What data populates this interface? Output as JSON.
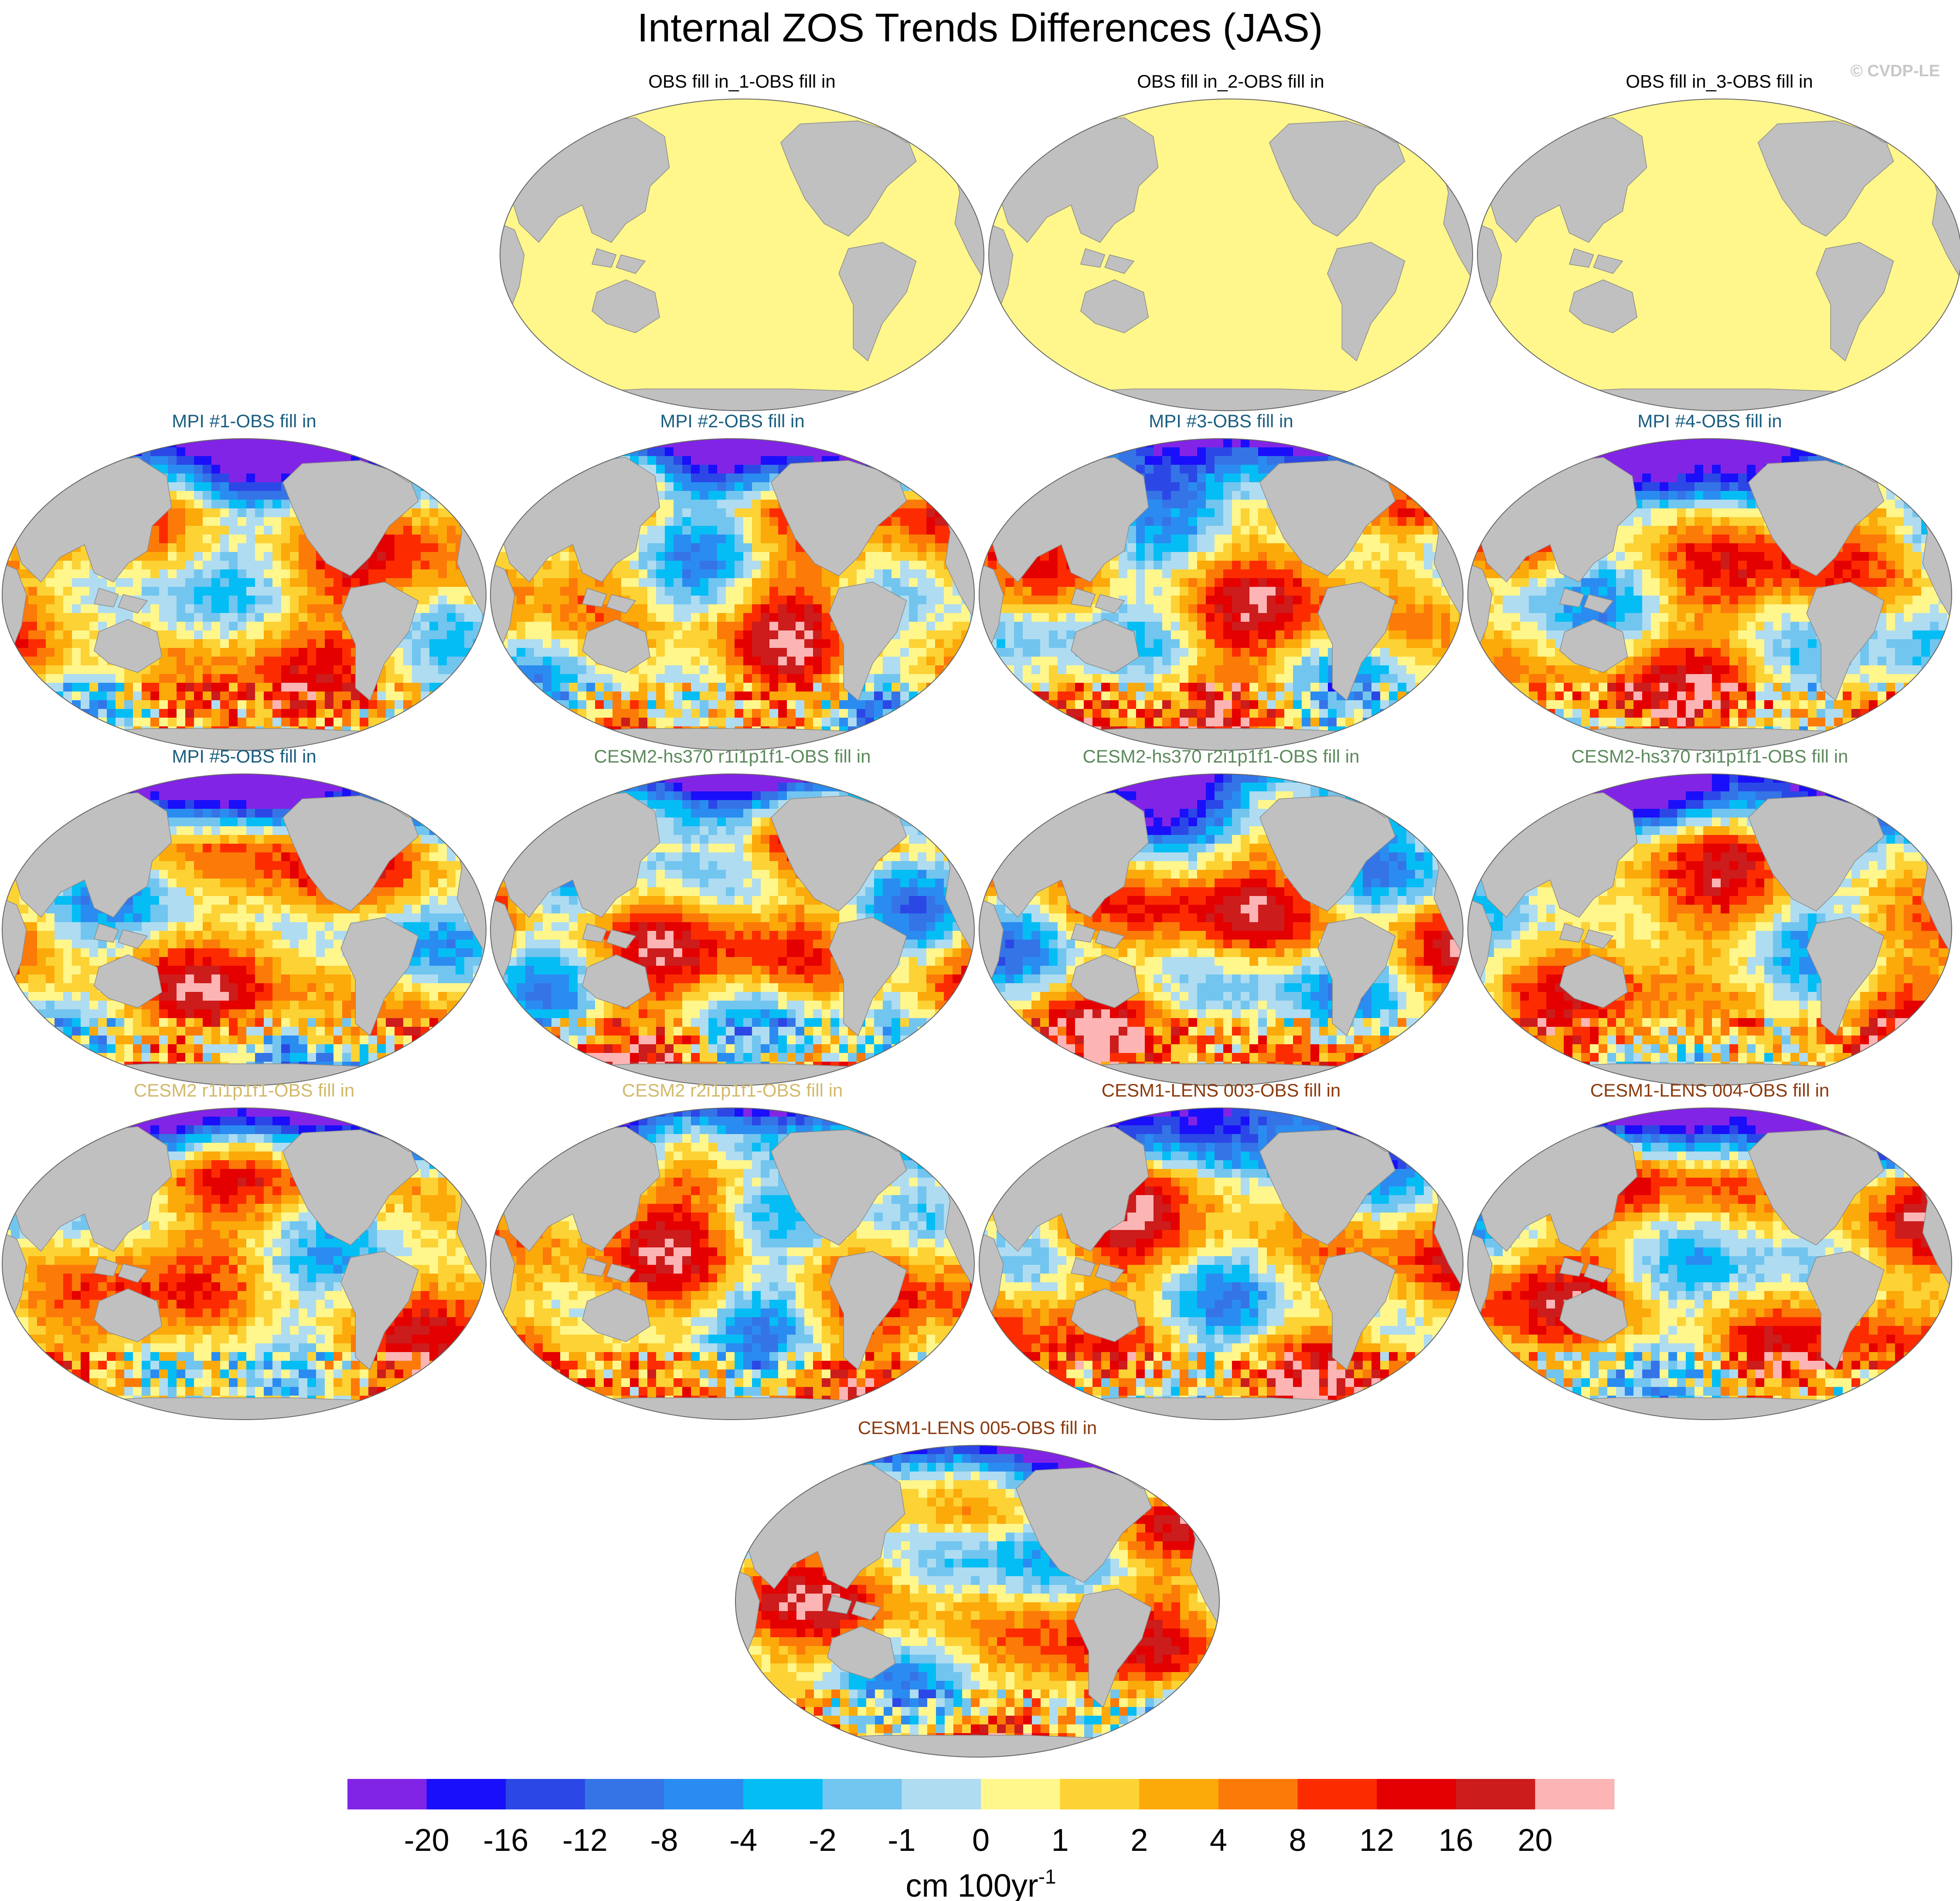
{
  "figure": {
    "title": "Internal ZOS Trends Differences (JAS)",
    "watermark": "© CVDP-LE"
  },
  "chart_data": {
    "type": "heatmap",
    "title": "Internal ZOS Trends Differences (JAS)",
    "projection": "robinson-like global map, Pacific-centered",
    "land_color": "#c0c0c0",
    "panels": [
      {
        "title": "OBS fill in_1-OBS fill in",
        "title_color": "#000000",
        "pattern": "uniform"
      },
      {
        "title": "OBS fill in_2-OBS fill in",
        "title_color": "#000000",
        "pattern": "uniform"
      },
      {
        "title": "OBS fill in_3-OBS fill in",
        "title_color": "#000000",
        "pattern": "uniform"
      },
      {
        "title": "MPI #1-OBS fill in",
        "title_color": "#1a5e80",
        "pattern": "field"
      },
      {
        "title": "MPI #2-OBS fill in",
        "title_color": "#1a5e80",
        "pattern": "field"
      },
      {
        "title": "MPI #3-OBS fill in",
        "title_color": "#1a5e80",
        "pattern": "field"
      },
      {
        "title": "MPI #4-OBS fill in",
        "title_color": "#1a5e80",
        "pattern": "field"
      },
      {
        "title": "MPI #5-OBS fill in",
        "title_color": "#1a5e80",
        "pattern": "field"
      },
      {
        "title": "CESM2-hs370 r1i1p1f1-OBS fill in",
        "title_color": "#5d8a5d",
        "pattern": "field"
      },
      {
        "title": "CESM2-hs370 r2i1p1f1-OBS fill in",
        "title_color": "#5d8a5d",
        "pattern": "field"
      },
      {
        "title": "CESM2-hs370 r3i1p1f1-OBS fill in",
        "title_color": "#5d8a5d",
        "pattern": "field"
      },
      {
        "title": "CESM2 r1i1p1f1-OBS fill in",
        "title_color": "#d2b96a",
        "pattern": "field"
      },
      {
        "title": "CESM2 r2i1p1f1-OBS fill in",
        "title_color": "#d2b96a",
        "pattern": "field"
      },
      {
        "title": "CESM1-LENS 003-OBS fill in",
        "title_color": "#8b3a0e",
        "pattern": "field"
      },
      {
        "title": "CESM1-LENS 004-OBS fill in",
        "title_color": "#8b3a0e",
        "pattern": "field"
      },
      {
        "title": "CESM1-LENS 005-OBS fill in",
        "title_color": "#8b3a0e",
        "pattern": "field"
      }
    ],
    "colorbar": {
      "label": "cm 100yr",
      "label_superscript": "-1",
      "ticks": [
        "-20",
        "-16",
        "-12",
        "-8",
        "-4",
        "-2",
        "-1",
        "0",
        "1",
        "2",
        "4",
        "8",
        "12",
        "16",
        "20"
      ],
      "colors": [
        "#8224e6",
        "#1a0ffa",
        "#2b48e6",
        "#3574e6",
        "#2a8cf0",
        "#05bdf5",
        "#72c5ef",
        "#afdcf0",
        "#fff68c",
        "#fcd235",
        "#fca90a",
        "#fc7a08",
        "#fc2c00",
        "#e40000",
        "#cc1c1c",
        "#fcb4b4"
      ]
    }
  }
}
